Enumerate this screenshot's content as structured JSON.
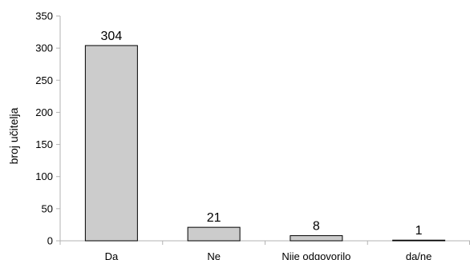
{
  "chart_data": {
    "type": "bar",
    "title": "",
    "xlabel": "",
    "ylabel": "broj učitelja",
    "categories": [
      "Da",
      "Ne",
      "Nije odgovorilo",
      "da/ne"
    ],
    "values": [
      304,
      21,
      8,
      1
    ],
    "data_labels": [
      "304",
      "21",
      "8",
      "1"
    ],
    "ylim": [
      0,
      350
    ],
    "yticks": [
      "0",
      "50",
      "100",
      "150",
      "200",
      "250",
      "300",
      "350"
    ],
    "grid": false,
    "legend": "none",
    "bar_color": "#cccccc",
    "bar_outline": "#000000",
    "axis_color": "#b3b3b3"
  }
}
